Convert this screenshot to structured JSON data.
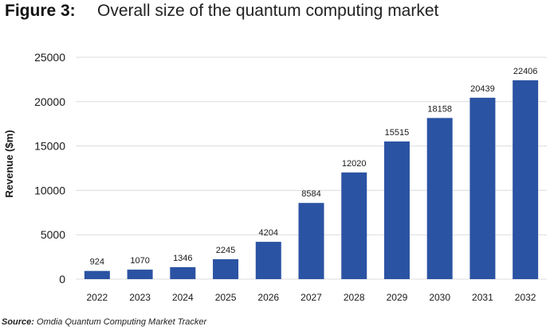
{
  "figure": {
    "label": "Figure 3:",
    "title": "Overall size of the quantum computing market"
  },
  "source": {
    "prefix": "Source:",
    "text": "Omdia Quantum Computing Market Tracker"
  },
  "colors": {
    "bar": "#2b53a3",
    "grid": "#dcdcdc",
    "text": "#1a1a1a"
  },
  "chart_data": {
    "type": "bar",
    "title": "Overall size of the quantum computing market",
    "xlabel": "",
    "ylabel": "Revenue ($m)",
    "ylim": [
      0,
      25000
    ],
    "yticks": [
      0,
      5000,
      10000,
      15000,
      20000,
      25000
    ],
    "grid": true,
    "categories": [
      "2022",
      "2023",
      "2024",
      "2025",
      "2026",
      "2027",
      "2028",
      "2029",
      "2030",
      "2031",
      "2032"
    ],
    "values": [
      924,
      1070,
      1346,
      2245,
      4204,
      8584,
      12020,
      15515,
      18158,
      20439,
      22406
    ]
  }
}
